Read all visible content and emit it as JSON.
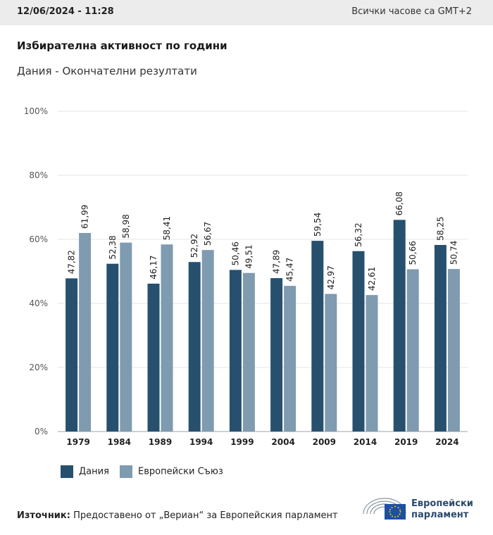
{
  "header": {
    "datetime": "12/06/2024 - 11:28",
    "timezone": "Всички часове са GMT+2"
  },
  "title": "Избирателна активност по години",
  "subtitle": "Дания - Окончателни резултати",
  "chart_data": {
    "type": "bar",
    "title": "Избирателна активност по години",
    "subtitle": "Дания - Окончателни резултати",
    "categories": [
      "1979",
      "1984",
      "1989",
      "1994",
      "1999",
      "2004",
      "2009",
      "2014",
      "2019",
      "2024"
    ],
    "series": [
      {
        "name": "Дания",
        "color": "#27506f",
        "values": [
          47.82,
          52.38,
          46.17,
          52.92,
          50.46,
          47.89,
          59.54,
          56.32,
          66.08,
          58.25
        ]
      },
      {
        "name": "Европейски Съюз",
        "color": "#7f9bb0",
        "values": [
          61.99,
          58.98,
          58.41,
          56.67,
          49.51,
          45.47,
          42.97,
          42.61,
          50.66,
          50.74
        ]
      }
    ],
    "data_labels": [
      [
        "47,82",
        "52,38",
        "46,17",
        "52,92",
        "50,46",
        "47,89",
        "59,54",
        "56,32",
        "66,08",
        "58,25"
      ],
      [
        "61,99",
        "58,98",
        "58,41",
        "56,67",
        "49,51",
        "45,47",
        "42,97",
        "42,61",
        "50,66",
        "50,74"
      ]
    ],
    "y_ticks": [
      {
        "value": 0,
        "label": "0%"
      },
      {
        "value": 20,
        "label": "20%"
      },
      {
        "value": 40,
        "label": "40%"
      },
      {
        "value": 60,
        "label": "60%"
      },
      {
        "value": 80,
        "label": "80%"
      },
      {
        "value": 100,
        "label": "100%"
      }
    ],
    "ylim": [
      0,
      100
    ],
    "xlabel": "",
    "ylabel": "",
    "grid": true,
    "legend_position": "bottom-left"
  },
  "legend": {
    "items": [
      {
        "label": "Дания",
        "color": "#27506f"
      },
      {
        "label": "Европейски Съюз",
        "color": "#7f9bb0"
      }
    ]
  },
  "footer": {
    "source_label": "Източник:",
    "source_text": "Предоставено от „Вериан“ за Европейския парламент"
  },
  "logo": {
    "line1": "Европейски",
    "line2": "парламент"
  }
}
